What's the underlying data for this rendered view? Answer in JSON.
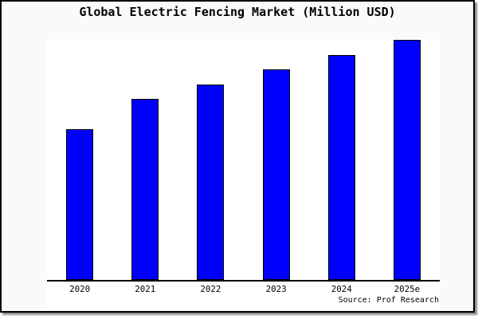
{
  "header": {
    "title": "Global Electric Fencing Market (Million USD)"
  },
  "footer": {
    "source": "Source: Prof Research"
  },
  "colors": {
    "bar_fill": "#0000ff",
    "bar_border": "#000000",
    "axis": "#000000",
    "card_background": "#fafafa",
    "plot_background": "#ffffff",
    "card_border": "#000000",
    "text": "#000000"
  },
  "chart_data": {
    "type": "bar",
    "title": "Global Electric Fencing Market (Million USD)",
    "categories": [
      "2020",
      "2021",
      "2022",
      "2023",
      "2024",
      "2025e"
    ],
    "values": [
      62.8,
      75.4,
      81.4,
      87.7,
      93.7,
      100
    ],
    "values_unit": "relative bar height, % of tallest bar (2025e); no numeric y-axis labels are shown in the chart",
    "xlabel": "",
    "ylabel": "",
    "y_ticks_shown": false,
    "grid": false,
    "legend": false,
    "source_note": "Source: Prof Research"
  }
}
